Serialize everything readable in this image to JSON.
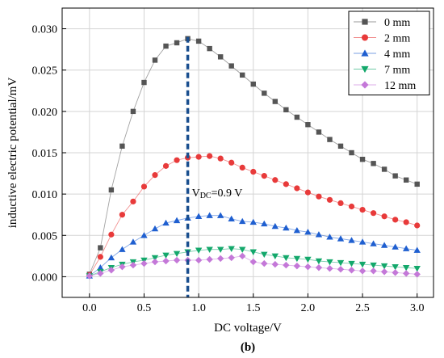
{
  "chart_data": {
    "type": "line",
    "xlabel": "DC voltage/V",
    "ylabel": "inductive electric potential/mV",
    "caption": "(b)",
    "xlim": [
      -0.25,
      3.15
    ],
    "ylim": [
      -0.0025,
      0.0325
    ],
    "x_ticks": [
      0.0,
      0.5,
      1.0,
      1.5,
      2.0,
      2.5,
      3.0
    ],
    "x_tick_labels": [
      "0.0",
      "0.5",
      "1.0",
      "1.5",
      "2.0",
      "2.5",
      "3.0"
    ],
    "y_ticks": [
      0.0,
      0.005,
      0.01,
      0.015,
      0.02,
      0.025,
      0.03
    ],
    "y_tick_labels": [
      "0.000",
      "0.005",
      "0.010",
      "0.015",
      "0.020",
      "0.025",
      "0.030"
    ],
    "grid": true,
    "legend_position": "top-right",
    "x": [
      0.0,
      0.1,
      0.2,
      0.3,
      0.4,
      0.5,
      0.6,
      0.7,
      0.8,
      0.9,
      1.0,
      1.1,
      1.2,
      1.3,
      1.4,
      1.5,
      1.6,
      1.7,
      1.8,
      1.9,
      2.0,
      2.1,
      2.2,
      2.3,
      2.4,
      2.5,
      2.6,
      2.7,
      2.8,
      2.9,
      3.0
    ],
    "series": [
      {
        "name": "0 mm",
        "color": "#555555",
        "marker": "square",
        "values": [
          0.0003,
          0.0035,
          0.0105,
          0.0158,
          0.02,
          0.0235,
          0.0262,
          0.0279,
          0.0283,
          0.0288,
          0.0285,
          0.0276,
          0.0266,
          0.0255,
          0.0244,
          0.0233,
          0.0222,
          0.0212,
          0.0202,
          0.0193,
          0.0184,
          0.0175,
          0.0166,
          0.0158,
          0.015,
          0.0142,
          0.0137,
          0.013,
          0.0122,
          0.0117,
          0.0112
        ]
      },
      {
        "name": "2 mm",
        "color": "#e83a3a",
        "marker": "circle",
        "values": [
          0.0002,
          0.0024,
          0.0051,
          0.0075,
          0.0091,
          0.0109,
          0.0123,
          0.0134,
          0.0141,
          0.0144,
          0.0145,
          0.0146,
          0.0143,
          0.0138,
          0.0132,
          0.0127,
          0.0122,
          0.0117,
          0.0112,
          0.0107,
          0.0102,
          0.0097,
          0.0093,
          0.0089,
          0.0085,
          0.0081,
          0.0077,
          0.0073,
          0.0069,
          0.0066,
          0.0062
        ]
      },
      {
        "name": "4 mm",
        "color": "#1f5fd0",
        "marker": "triangle-up",
        "values": [
          0.0001,
          0.0011,
          0.0023,
          0.0033,
          0.0042,
          0.005,
          0.0058,
          0.0065,
          0.0068,
          0.0071,
          0.0073,
          0.0074,
          0.0074,
          0.007,
          0.0067,
          0.0066,
          0.0064,
          0.0061,
          0.0059,
          0.0056,
          0.0054,
          0.0051,
          0.0048,
          0.0046,
          0.0044,
          0.0042,
          0.004,
          0.0038,
          0.0036,
          0.0034,
          0.0032
        ]
      },
      {
        "name": "7 mm",
        "color": "#13a86b",
        "marker": "triangle-down",
        "values": [
          0.0001,
          0.0006,
          0.0011,
          0.0015,
          0.0018,
          0.002,
          0.0023,
          0.0026,
          0.0028,
          0.003,
          0.0032,
          0.0033,
          0.0033,
          0.0034,
          0.0033,
          0.003,
          0.0027,
          0.0025,
          0.0023,
          0.0022,
          0.0021,
          0.0019,
          0.0018,
          0.0017,
          0.0016,
          0.0015,
          0.0014,
          0.0013,
          0.0012,
          0.0011,
          0.001
        ]
      },
      {
        "name": "12 mm",
        "color": "#c478d8",
        "marker": "diamond",
        "values": [
          0.0001,
          0.0004,
          0.0008,
          0.0012,
          0.0014,
          0.0016,
          0.0018,
          0.0019,
          0.002,
          0.002,
          0.002,
          0.0021,
          0.0022,
          0.0023,
          0.0025,
          0.0018,
          0.0016,
          0.0015,
          0.0014,
          0.0013,
          0.0012,
          0.0011,
          0.001,
          0.0009,
          0.0008,
          0.0007,
          0.0007,
          0.0006,
          0.0005,
          0.0004,
          0.0003
        ]
      }
    ],
    "annotation": {
      "text_main": "V",
      "text_sub": "DC",
      "text_rest": "=0.9 V",
      "vline_x": 0.9,
      "label_y": 0.0097,
      "color": "#1a4f8f"
    }
  }
}
